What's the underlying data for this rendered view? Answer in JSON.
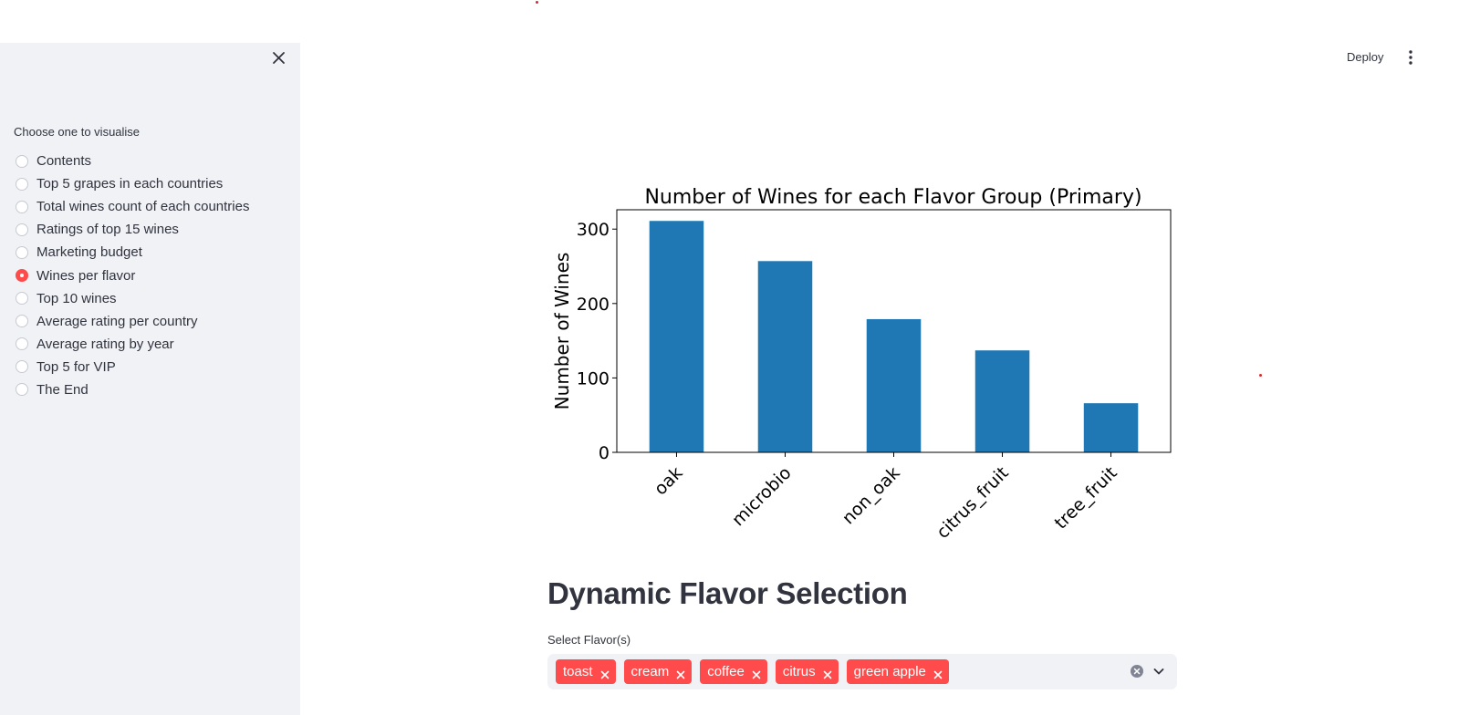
{
  "sidebar": {
    "label": "Choose one to visualise",
    "items": [
      {
        "label": "Contents",
        "selected": false
      },
      {
        "label": "Top 5 grapes in each countries",
        "selected": false
      },
      {
        "label": "Total wines count of each countries",
        "selected": false
      },
      {
        "label": "Ratings of top 15 wines",
        "selected": false
      },
      {
        "label": "Marketing budget",
        "selected": false
      },
      {
        "label": "Wines per flavor",
        "selected": true
      },
      {
        "label": "Top 10 wines",
        "selected": false
      },
      {
        "label": "Average rating per country",
        "selected": false
      },
      {
        "label": "Average rating by year",
        "selected": false
      },
      {
        "label": "Top 5 for VIP",
        "selected": false
      },
      {
        "label": "The End",
        "selected": false
      }
    ]
  },
  "header": {
    "deploy_label": "Deploy"
  },
  "colors": {
    "accent": "#ff4b4b",
    "bar": "#1f77b4",
    "sidebar_bg": "#f0f2f6"
  },
  "chart_data": {
    "type": "bar",
    "title": "Number of Wines for each Flavor Group (Primary)",
    "xlabel": "",
    "ylabel": "Number of Wines",
    "categories": [
      "oak",
      "microbio",
      "non_oak",
      "citrus_fruit",
      "tree_fruit"
    ],
    "values": [
      311,
      257,
      179,
      137,
      66
    ],
    "ylim": [
      0,
      326
    ],
    "yticks": [
      0,
      100,
      200,
      300
    ],
    "grid": false
  },
  "main": {
    "heading": "Dynamic Flavor Selection",
    "select_label": "Select Flavor(s)",
    "selected_flavors": [
      "toast",
      "cream",
      "coffee",
      "citrus",
      "green apple"
    ]
  }
}
